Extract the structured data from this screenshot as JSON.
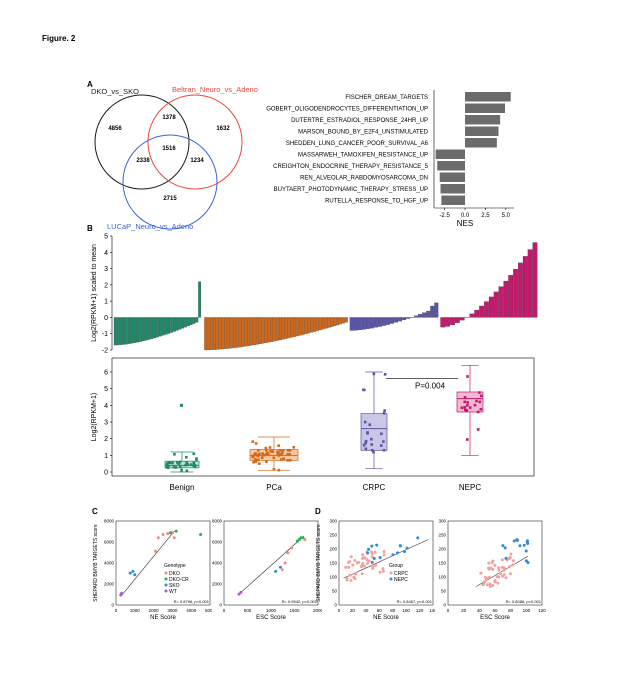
{
  "figure_title": "Figure. 2",
  "panels": {
    "A": "A",
    "B": "B",
    "C": "C",
    "D": "D"
  },
  "colors": {
    "black": "#1a1a1a",
    "red": "#e8483a",
    "blue": "#3a62d8",
    "benign": "#1f8a6a",
    "pca": "#d2681a",
    "crpc": "#5a55a6",
    "nepc": "#c21a6c",
    "grey": "#6b6b6b"
  },
  "venn": {
    "labels": {
      "dko": "DKO_vs_SKO",
      "beltran": "Beltran_Neuro_vs_Adeno",
      "lucap": "LUCaP_Neuro_vs_Adeno"
    },
    "counts": {
      "dko_only": "4856",
      "dko_beltran": "1378",
      "beltran_only": "1632",
      "center": "1516",
      "dko_lucap": "2338",
      "beltran_lucap": "1234",
      "lucap_only": "2715"
    }
  },
  "chart_data": [
    {
      "type": "bar",
      "orientation": "horizontal",
      "categories": [
        "FISCHER_DREAM_TARGETS",
        "GOBERT_OLIGODENDROCYTES_DIFFERENTIATION_UP",
        "DUTERTRE_ESTRADIOL_RESPONSE_24HR_UP",
        "MARSON_BOUND_BY_E2F4_UNSTIMULATED",
        "SHEDDEN_LUNG_CANCER_POOR_SURVIVAL_A6",
        "MASSARWEH_TAMOXIFEN_RESISTANCE_UP",
        "CREIGHTON_ENDOCRINE_THERAPY_RESISTANCE_5",
        "REN_ALVEOLAR_RABDOMYOSARCOMA_DN",
        "BUYTAERT_PHOTODYNAMIC_THERAPY_STRESS_UP",
        "RUTELLA_RESPONSE_TO_HGF_UP"
      ],
      "values": [
        5.6,
        4.9,
        4.3,
        4.1,
        3.9,
        -3.6,
        -3.4,
        -3.1,
        -3.0,
        -2.9
      ],
      "xlabel": "NES",
      "xticks": [
        "-2.5",
        "0.0",
        "2.5",
        "5.0"
      ],
      "xlim": [
        -3.8,
        6.0
      ]
    },
    {
      "type": "bar",
      "series": [
        {
          "name": "Benign",
          "count": 30,
          "range": [
            -1.7,
            -0.3
          ],
          "outlier": 2.2
        },
        {
          "name": "PCa",
          "count": 50,
          "range": [
            -2.0,
            -0.3
          ]
        },
        {
          "name": "CRPC",
          "count": 22,
          "range": [
            -0.8,
            0.6
          ]
        },
        {
          "name": "NEPC",
          "count": 20,
          "range": [
            -0.6,
            4.6
          ]
        }
      ],
      "ylabel": "Log2(RPKM+1) scaled to mean",
      "yticks": [
        "5",
        "4",
        "3",
        "2",
        "1",
        "0",
        "-1",
        "-2"
      ],
      "ylim": [
        -2,
        5
      ]
    },
    {
      "type": "scatter",
      "subtype": "box",
      "categories": [
        "Benign",
        "PCa",
        "CRPC",
        "NEPC"
      ],
      "boxes": [
        {
          "q1": 0.25,
          "median": 0.4,
          "q3": 0.65,
          "min": 0.0,
          "max": 1.2
        },
        {
          "q1": 0.7,
          "median": 1.0,
          "q3": 1.35,
          "min": 0.1,
          "max": 2.1
        },
        {
          "q1": 1.3,
          "median": 2.6,
          "q3": 3.5,
          "min": 0.2,
          "max": 6.0
        },
        {
          "q1": 3.6,
          "median": 4.4,
          "q3": 4.8,
          "min": 1.0,
          "max": 6.4
        }
      ],
      "ylabel": "Log2(RPKM+1)",
      "yticks": [
        "6",
        "5",
        "4",
        "3",
        "2",
        "1",
        "0"
      ],
      "ylim": [
        0,
        6.6
      ],
      "annotation": "P=0.004"
    },
    {
      "type": "scatter",
      "panel": "C-left",
      "xlabel": "NE Score",
      "ylabel": "SHEPARD BMYB TARGETS score",
      "xticks": [
        "0",
        "1000",
        "2000",
        "3000",
        "4000",
        "5000"
      ],
      "yticks": [
        "8000",
        "6000",
        "4000",
        "2000",
        "0"
      ],
      "stat": "R= 0.8796, p<0.001",
      "legend_title": "Genotype",
      "legend": [
        "DKO",
        "DKO-CR",
        "SKO",
        "WT"
      ]
    },
    {
      "type": "scatter",
      "panel": "C-right",
      "xlabel": "ESC Score",
      "xticks": [
        "0",
        "500",
        "1000",
        "1500",
        "2000"
      ],
      "yticks": [
        "8000",
        "6000",
        "4000",
        "2000",
        "0"
      ],
      "stat": "R= 0.9542, p<0.001"
    },
    {
      "type": "scatter",
      "panel": "D-left",
      "xlabel": "NE Score",
      "ylabel": "SHEPARD BMYB TARGETS score",
      "xticks": [
        "0",
        "20",
        "40",
        "60",
        "80",
        "100",
        "120",
        "140"
      ],
      "yticks": [
        "300",
        "250",
        "200",
        "150",
        "100",
        "50",
        "0"
      ],
      "stat": "R= 0.8467, p<0.001",
      "legend_title": "Group",
      "legend": [
        "CRPC",
        "NEPC"
      ]
    },
    {
      "type": "scatter",
      "panel": "D-right",
      "xlabel": "ESC Score",
      "xticks": [
        "0",
        "20",
        "40",
        "60",
        "80",
        "100",
        "120"
      ],
      "yticks": [
        "300",
        "250",
        "200",
        "150",
        "100",
        "50",
        "0"
      ],
      "stat": "R= 0.8086, p<0.001"
    }
  ]
}
